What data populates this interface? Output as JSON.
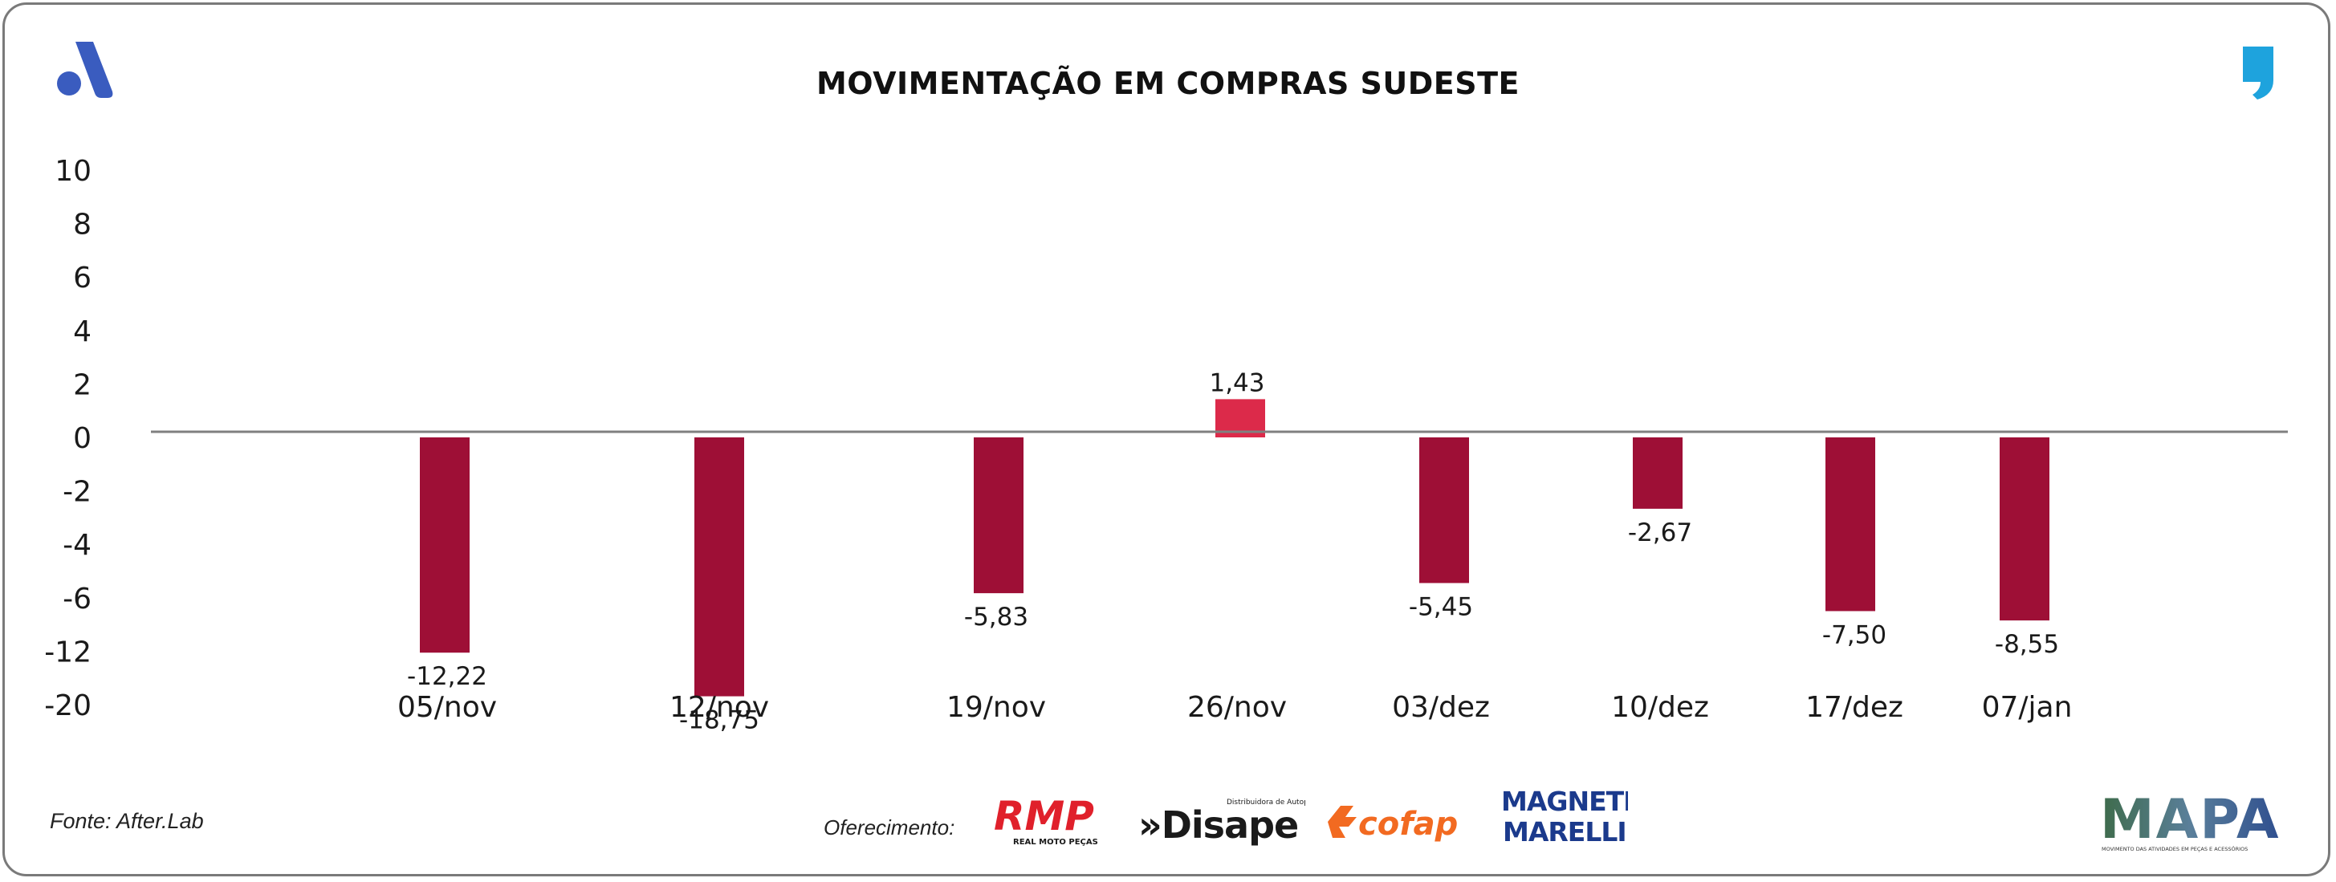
{
  "page": {
    "title": "MOVIMENTAÇÃO EM COMPRAS SUDESTE",
    "source": "Fonte: After.Lab",
    "sponsor_label": "Oferecimento:",
    "sponsors": [
      {
        "name": "RMP",
        "subtext": "REAL MOTO PEÇAS",
        "color": "#e0202b"
      },
      {
        "name": "»Disape",
        "subtext": "Distribuidora de Autopeças",
        "color": "#1a1a1a"
      },
      {
        "name": "cofap",
        "color": "#f26a21"
      },
      {
        "name": "MAGNETI",
        "name2": "MARELLI",
        "color": "#1b3a8c"
      }
    ],
    "brand": {
      "name": "MAPA",
      "subtext": "MOVIMENTO DAS ATIVIDADES EM PEÇAS E ACESSÓRIOS"
    },
    "colors": {
      "bar_negative": "#9e0f36",
      "bar_positive": "#dc2a4a",
      "baseline": "#808080",
      "accent_logo": "#3a5cbf",
      "quote_icon": "#1ea3dd"
    }
  },
  "chart_data": {
    "type": "bar",
    "title": "MOVIMENTAÇÃO EM COMPRAS SUDESTE",
    "categories": [
      "05/nov",
      "12/nov",
      "19/nov",
      "26/nov",
      "03/dez",
      "10/dez",
      "17/dez",
      "07/jan"
    ],
    "values": [
      -12.22,
      -18.75,
      -5.83,
      1.43,
      -5.45,
      -2.67,
      -7.5,
      -8.55
    ],
    "value_labels": [
      "-12,22",
      "-18,75",
      "-5,83",
      "1,43",
      "-5,45",
      "-2,67",
      "-7,50",
      "-8,55"
    ],
    "y_tick_labels": [
      "10",
      "8",
      "6",
      "4",
      "2",
      "0",
      "-2",
      "-4",
      "-6",
      "-12",
      "-20"
    ],
    "y_tick_values": [
      10,
      8,
      6,
      4,
      2,
      0,
      -2,
      -4,
      -6,
      -12,
      -20
    ],
    "xlabel": "",
    "ylabel": "",
    "grid": false,
    "legend": "none"
  }
}
